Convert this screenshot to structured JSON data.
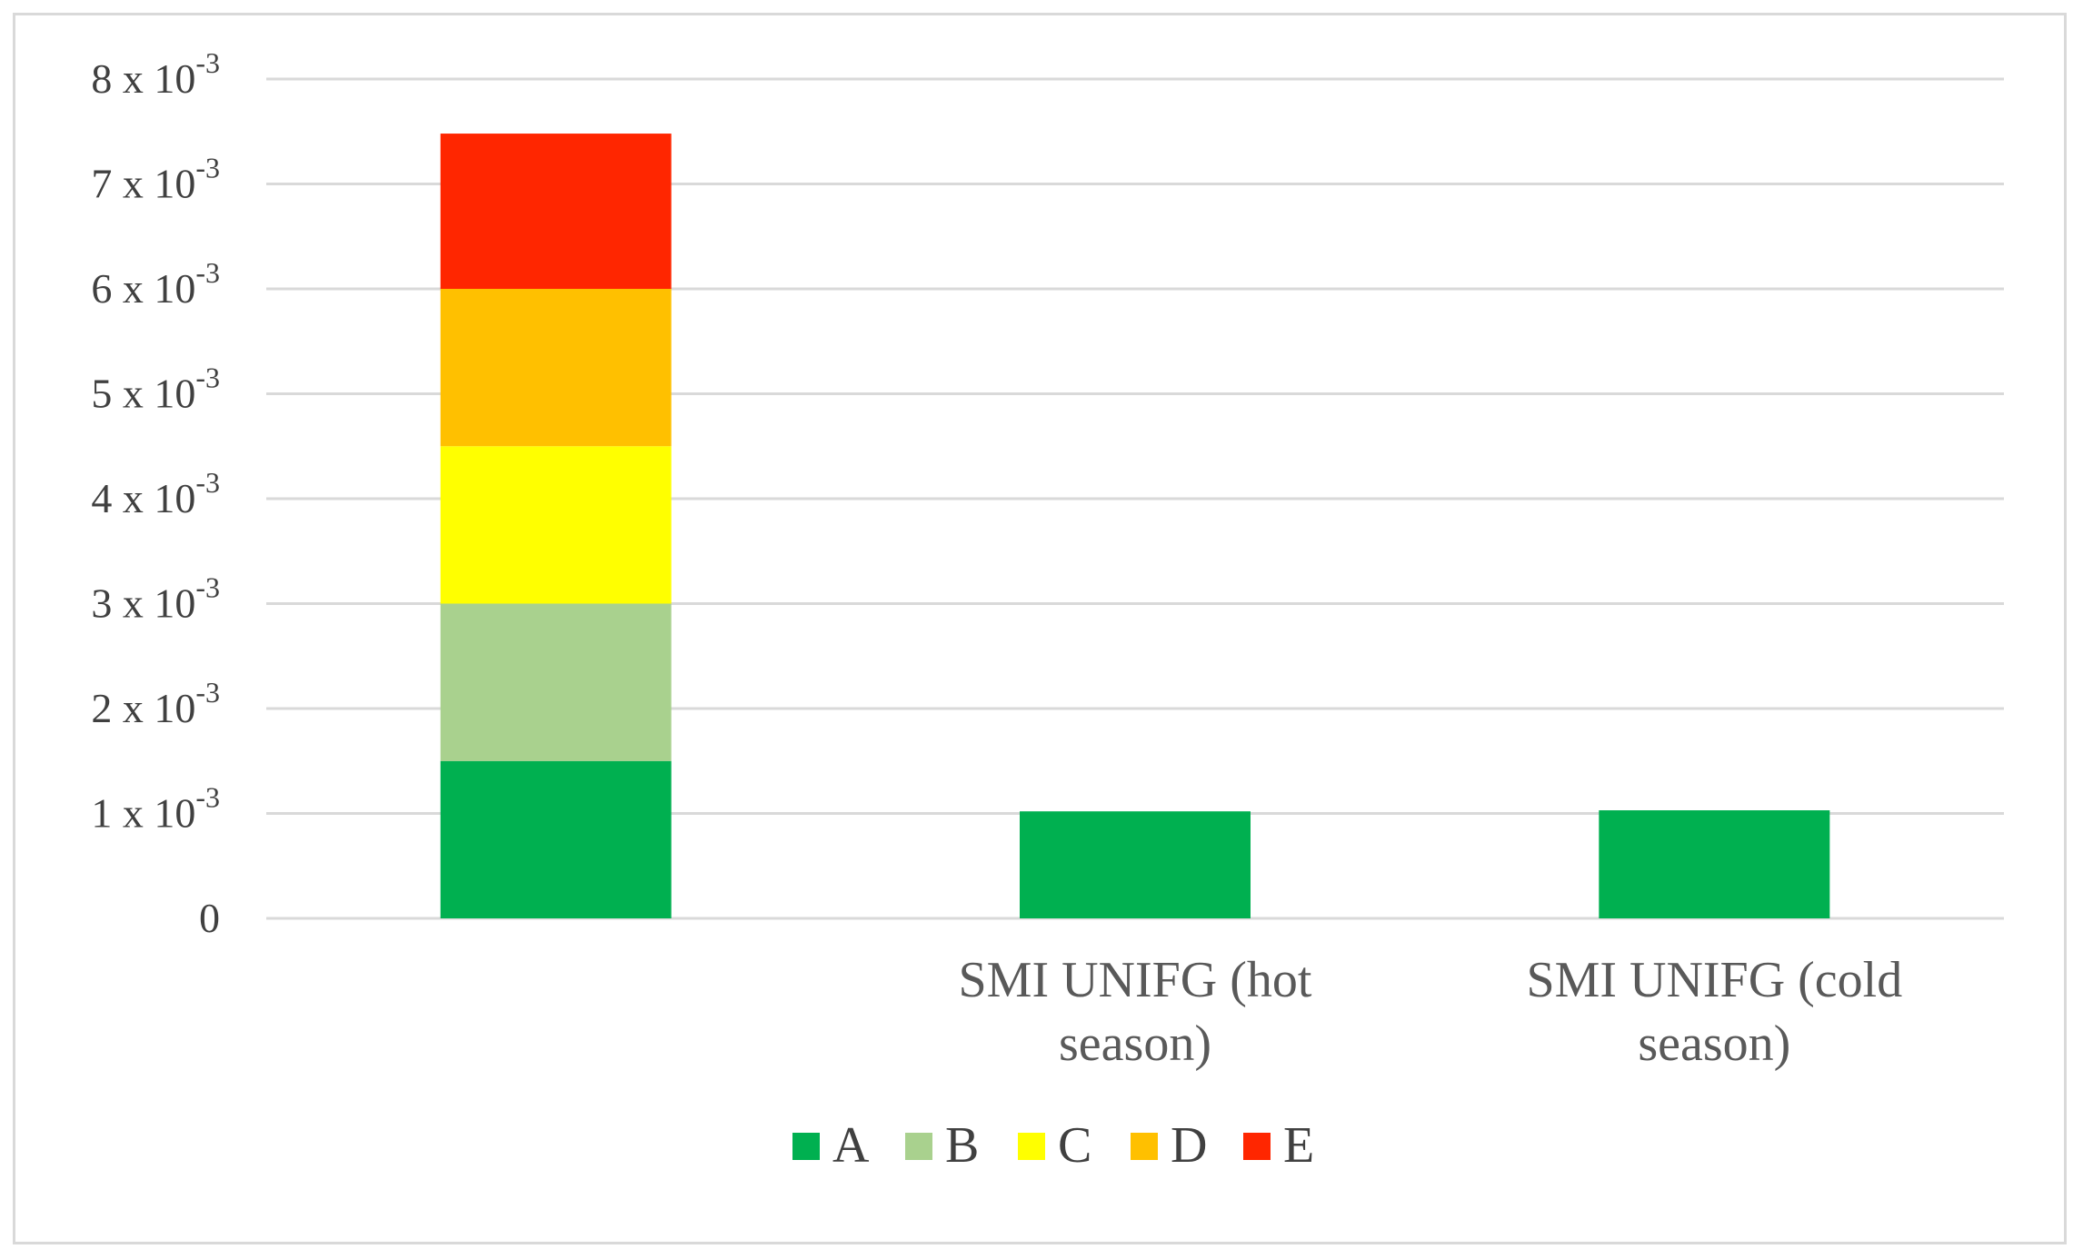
{
  "chart_data": {
    "type": "bar",
    "stacked": true,
    "categories": [
      "",
      "SMI UNIFG (hot season)",
      "SMI UNIFG (cold season)"
    ],
    "category_lines": [
      [],
      [
        "SMI UNIFG (hot",
        "season)"
      ],
      [
        "SMI UNIFG (cold",
        "season)"
      ]
    ],
    "series": [
      {
        "name": "A",
        "color": "#00b050",
        "values": [
          0.0015,
          0.00102,
          0.00103
        ]
      },
      {
        "name": "B",
        "color": "#a9d18e",
        "values": [
          0.0015,
          0,
          0
        ]
      },
      {
        "name": "C",
        "color": "#ffff00",
        "values": [
          0.0015,
          0,
          0
        ]
      },
      {
        "name": "D",
        "color": "#ffc000",
        "values": [
          0.0015,
          0,
          0
        ]
      },
      {
        "name": "E",
        "color": "#ff2600",
        "values": [
          0.00148,
          0,
          0
        ]
      }
    ],
    "yticks": [
      {
        "value": 0,
        "mantissa": "0",
        "exponent": ""
      },
      {
        "value": 0.001,
        "mantissa": "1 x 10",
        "exponent": "-3"
      },
      {
        "value": 0.002,
        "mantissa": "2 x 10",
        "exponent": "-3"
      },
      {
        "value": 0.003,
        "mantissa": "3 x 10",
        "exponent": "-3"
      },
      {
        "value": 0.004,
        "mantissa": "4 x 10",
        "exponent": "-3"
      },
      {
        "value": 0.005,
        "mantissa": "5 x 10",
        "exponent": "-3"
      },
      {
        "value": 0.006,
        "mantissa": "6 x 10",
        "exponent": "-3"
      },
      {
        "value": 0.007,
        "mantissa": "7 x 10",
        "exponent": "-3"
      },
      {
        "value": 0.008,
        "mantissa": "8 x 10",
        "exponent": "-3"
      }
    ],
    "ylim": [
      0,
      0.008
    ],
    "grid": true,
    "legend_position": "bottom",
    "title": "",
    "xlabel": "",
    "ylabel": ""
  }
}
